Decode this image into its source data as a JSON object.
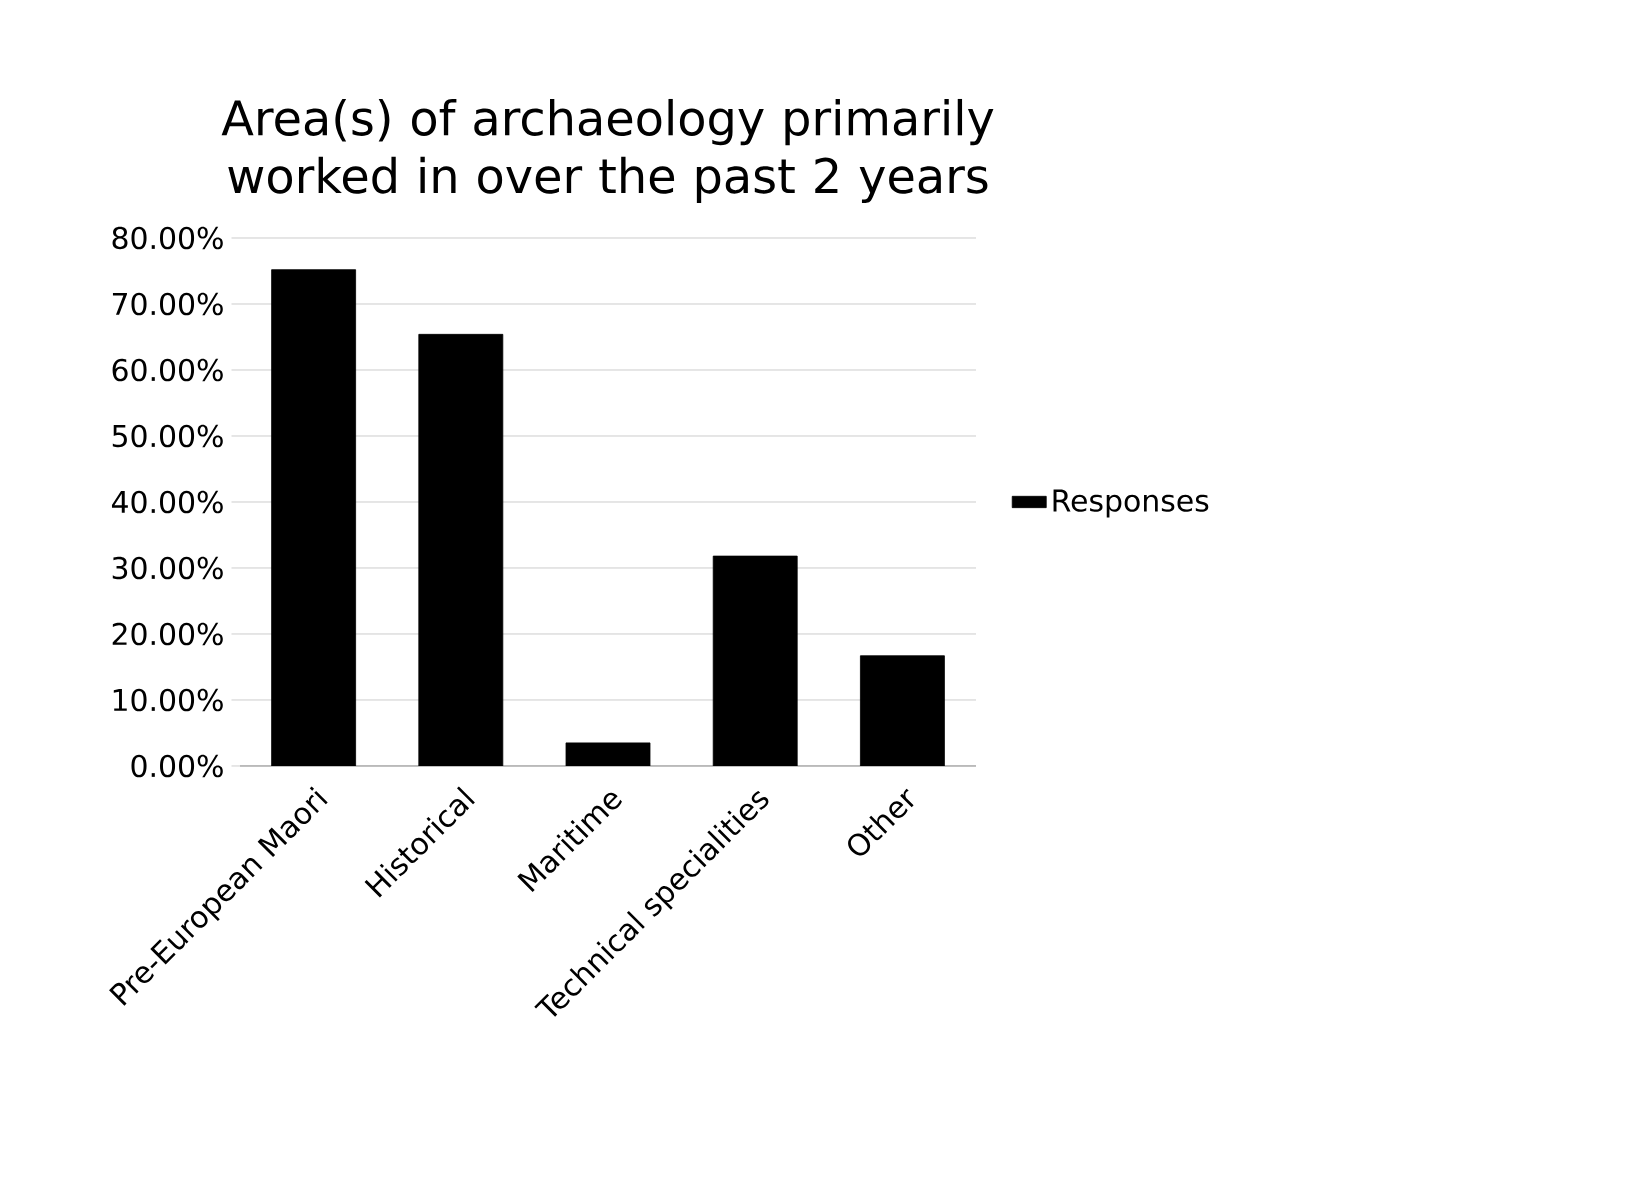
{
  "chart_data": {
    "type": "bar",
    "title": "Area(s) of archaeology primarily worked in over the past 2 years",
    "categories": [
      "Pre-European Maori",
      "Historical",
      "Maritime",
      "Technical specialities",
      "Other"
    ],
    "series": [
      {
        "name": "Responses",
        "color": "#000000",
        "values": [
          75.2,
          65.4,
          3.5,
          31.8,
          16.7
        ]
      }
    ],
    "ylim": [
      0,
      80
    ],
    "yticks": [
      {
        "value": 0,
        "label": "0.00%"
      },
      {
        "value": 10,
        "label": "10.00%"
      },
      {
        "value": 20,
        "label": "20.00%"
      },
      {
        "value": 30,
        "label": "30.00%"
      },
      {
        "value": 40,
        "label": "40.00%"
      },
      {
        "value": 50,
        "label": "50.00%"
      },
      {
        "value": 60,
        "label": "60.00%"
      },
      {
        "value": 70,
        "label": "70.00%"
      },
      {
        "value": 80,
        "label": "80.00%"
      }
    ],
    "grid": "y",
    "legend": "right"
  }
}
